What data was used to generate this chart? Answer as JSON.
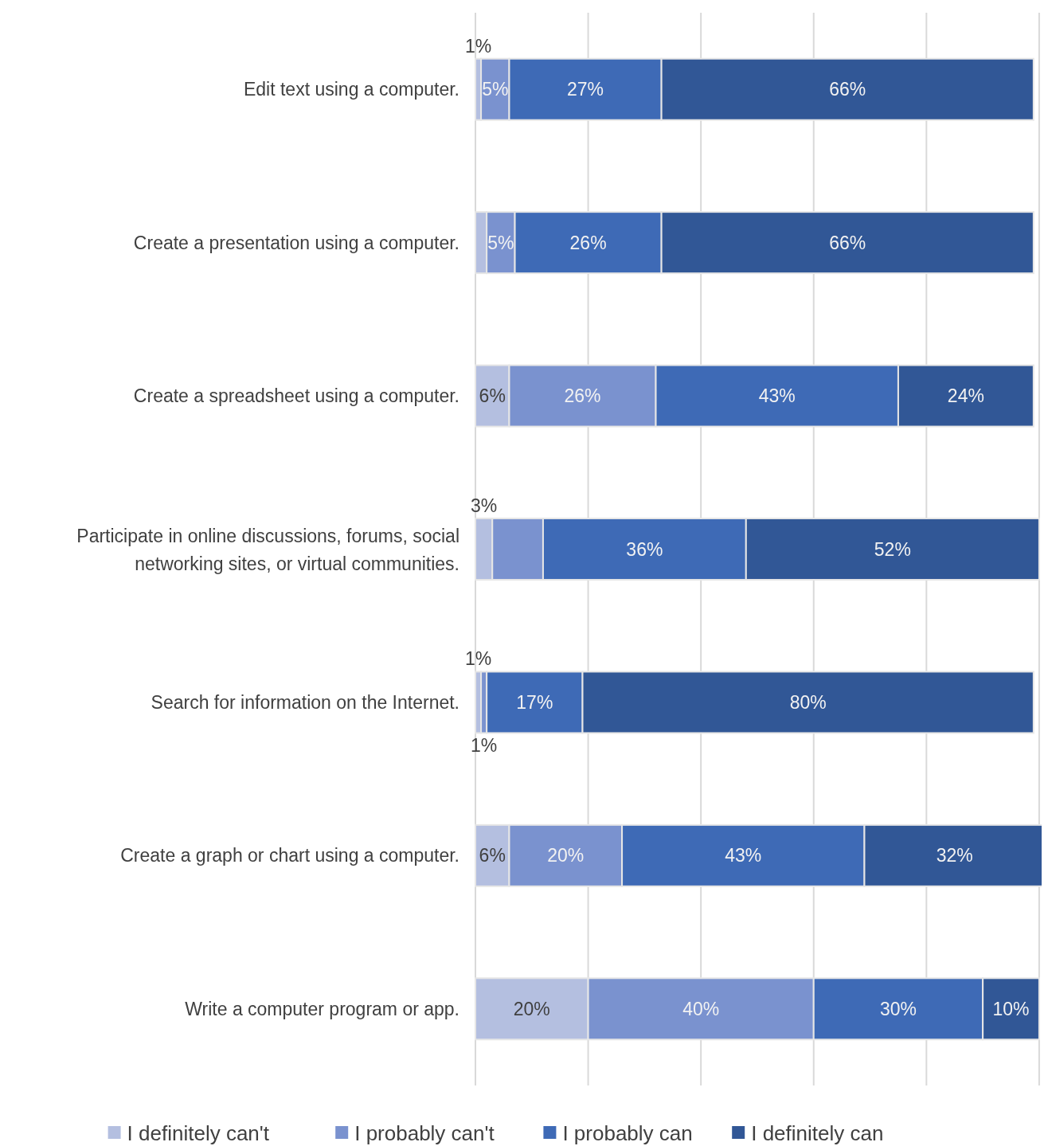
{
  "chart_data": {
    "type": "bar",
    "orientation": "horizontal",
    "stacked": true,
    "categories": [
      "Edit text using a computer.",
      "Create a presentation using a computer.",
      "Create a spreadsheet using a computer.",
      "Participate in online discussions, forums, social networking sites, or virtual communities.",
      "Search for information on the Internet.",
      "Create a graph or chart using a computer.",
      "Write a computer program or app."
    ],
    "series": [
      {
        "name": "I definitely can't",
        "color": "#b4bfe0",
        "values": [
          1,
          2,
          6,
          3,
          1,
          6,
          20
        ],
        "value_labels": [
          "1%",
          null,
          "6%",
          "3%",
          "1%",
          "6%",
          "20%"
        ]
      },
      {
        "name": "I probably can't",
        "color": "#7a92cf",
        "values": [
          5,
          5,
          26,
          9,
          1,
          20,
          40
        ],
        "value_labels": [
          "5%",
          "5%",
          "26%",
          null,
          "1%",
          "20%",
          "40%"
        ]
      },
      {
        "name": "I probably can",
        "color": "#3e6ab6",
        "values": [
          27,
          26,
          43,
          36,
          17,
          43,
          30
        ],
        "value_labels": [
          "27%",
          "26%",
          "43%",
          "36%",
          "17%",
          "43%",
          "30%"
        ]
      },
      {
        "name": "I definitely can",
        "color": "#315796",
        "values": [
          66,
          66,
          24,
          52,
          80,
          32,
          10
        ],
        "value_labels": [
          "66%",
          "66%",
          "24%",
          "52%",
          "80%",
          "32%",
          "10%"
        ]
      }
    ],
    "xlim": [
      0,
      101
    ],
    "xticks": [
      {
        "value": 0,
        "label": null
      },
      {
        "value": 20,
        "label": null
      },
      {
        "value": 40,
        "label": null
      },
      {
        "value": 60,
        "label": null
      },
      {
        "value": 80,
        "label": null
      },
      {
        "value": 100,
        "label": null
      }
    ],
    "grid": "x",
    "tick_labels": "y",
    "legend": "bottom"
  }
}
